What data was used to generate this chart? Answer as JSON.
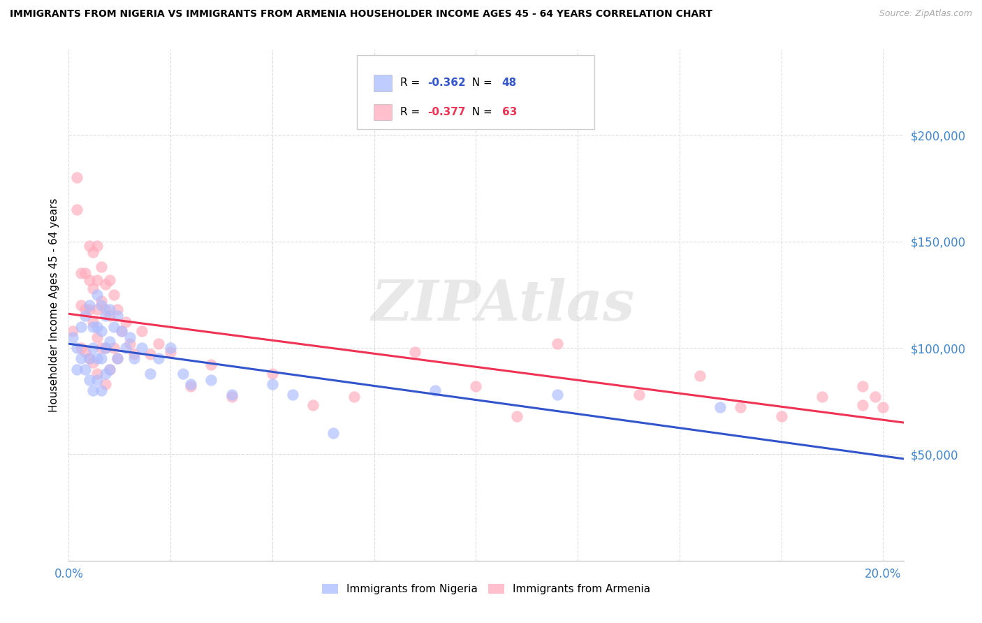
{
  "title": "IMMIGRANTS FROM NIGERIA VS IMMIGRANTS FROM ARMENIA HOUSEHOLDER INCOME AGES 45 - 64 YEARS CORRELATION CHART",
  "source": "Source: ZipAtlas.com",
  "ylabel": "Householder Income Ages 45 - 64 years",
  "xlim": [
    0.0,
    0.205
  ],
  "ylim": [
    0,
    240000
  ],
  "yticks": [
    50000,
    100000,
    150000,
    200000
  ],
  "ytick_labels": [
    "$50,000",
    "$100,000",
    "$150,000",
    "$200,000"
  ],
  "xticks": [
    0.0,
    0.025,
    0.05,
    0.075,
    0.1,
    0.125,
    0.15,
    0.175,
    0.2
  ],
  "xlabels_show": {
    "0.0": "0.0%",
    "0.20": "20.0%"
  },
  "nigeria_color": "#aabbff",
  "armenia_color": "#ffaabb",
  "nigeria_R": -0.362,
  "nigeria_N": 48,
  "armenia_R": -0.377,
  "armenia_N": 63,
  "nigeria_line_color": "#3355cc",
  "armenia_line_color": "#ee3355",
  "ytick_color": "#4488cc",
  "xtick_color": "#4488cc",
  "watermark_text": "ZIPAtlas",
  "legend_label_nigeria": "Immigrants from Nigeria",
  "legend_label_armenia": "Immigrants from Armenia",
  "nigeria_x": [
    0.001,
    0.002,
    0.002,
    0.003,
    0.003,
    0.004,
    0.004,
    0.005,
    0.005,
    0.005,
    0.006,
    0.006,
    0.006,
    0.007,
    0.007,
    0.007,
    0.007,
    0.008,
    0.008,
    0.008,
    0.008,
    0.009,
    0.009,
    0.009,
    0.01,
    0.01,
    0.01,
    0.011,
    0.012,
    0.012,
    0.013,
    0.014,
    0.015,
    0.016,
    0.018,
    0.02,
    0.022,
    0.025,
    0.028,
    0.03,
    0.035,
    0.04,
    0.05,
    0.055,
    0.065,
    0.09,
    0.12,
    0.16
  ],
  "nigeria_y": [
    105000,
    100000,
    90000,
    110000,
    95000,
    115000,
    90000,
    120000,
    95000,
    85000,
    110000,
    100000,
    80000,
    125000,
    110000,
    95000,
    85000,
    120000,
    108000,
    95000,
    80000,
    115000,
    100000,
    88000,
    118000,
    103000,
    90000,
    110000,
    115000,
    95000,
    108000,
    100000,
    105000,
    95000,
    100000,
    88000,
    95000,
    100000,
    88000,
    83000,
    85000,
    78000,
    83000,
    78000,
    60000,
    80000,
    78000,
    72000
  ],
  "armenia_x": [
    0.001,
    0.002,
    0.002,
    0.003,
    0.003,
    0.003,
    0.004,
    0.004,
    0.004,
    0.005,
    0.005,
    0.005,
    0.005,
    0.006,
    0.006,
    0.006,
    0.006,
    0.007,
    0.007,
    0.007,
    0.007,
    0.007,
    0.008,
    0.008,
    0.008,
    0.009,
    0.009,
    0.009,
    0.009,
    0.01,
    0.01,
    0.01,
    0.011,
    0.011,
    0.012,
    0.012,
    0.013,
    0.014,
    0.015,
    0.016,
    0.018,
    0.02,
    0.022,
    0.025,
    0.03,
    0.035,
    0.04,
    0.05,
    0.06,
    0.07,
    0.085,
    0.1,
    0.11,
    0.12,
    0.14,
    0.155,
    0.165,
    0.175,
    0.185,
    0.195,
    0.195,
    0.198,
    0.2
  ],
  "armenia_y": [
    108000,
    180000,
    165000,
    135000,
    120000,
    100000,
    135000,
    118000,
    98000,
    148000,
    132000,
    118000,
    95000,
    145000,
    128000,
    112000,
    93000,
    148000,
    132000,
    118000,
    105000,
    88000,
    138000,
    122000,
    100000,
    130000,
    118000,
    100000,
    83000,
    132000,
    115000,
    90000,
    125000,
    100000,
    118000,
    95000,
    108000,
    112000,
    102000,
    97000,
    108000,
    97000,
    102000,
    98000,
    82000,
    92000,
    77000,
    88000,
    73000,
    77000,
    98000,
    82000,
    68000,
    102000,
    78000,
    87000,
    72000,
    68000,
    77000,
    73000,
    82000,
    77000,
    72000
  ]
}
